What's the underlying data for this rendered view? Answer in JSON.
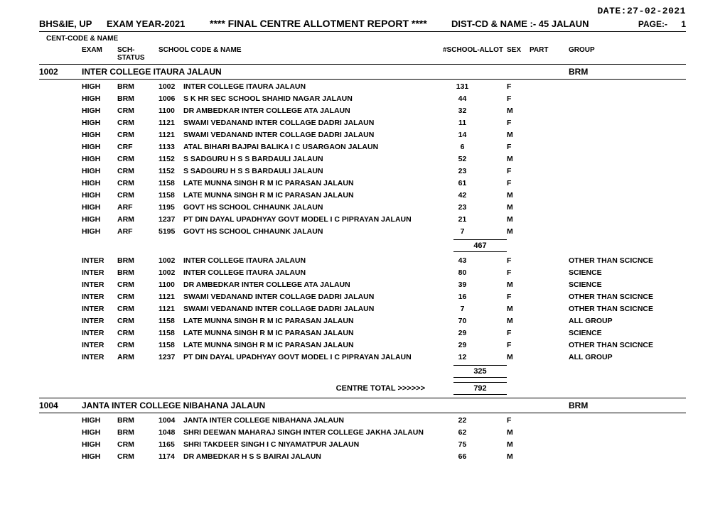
{
  "date_label": "DATE:27-02-2021",
  "org": "BHS&IE, UP",
  "exam_year": "EXAM YEAR-2021",
  "report_title": "****  FINAL CENTRE  ALLOTMENT REPORT  ****",
  "dist_label": "DIST-CD & NAME :-  45 JALAUN",
  "page_label": "PAGE:-",
  "page_no": "1",
  "cent_code_label": "CENT-CODE & NAME",
  "columns": {
    "exam": "EXAM",
    "status": "SCH-STATUS",
    "school": "SCHOOL CODE & NAME",
    "allot": "#SCHOOL-ALLOT",
    "sex": "SEX",
    "part": "PART",
    "group": "GROUP"
  },
  "centre_total_label": "CENTRE TOTAL >>>>>>",
  "centres": [
    {
      "code": "1002",
      "name": "INTER COLLEGE ITAURA JALAUN",
      "group": "BRM",
      "blocks": [
        {
          "rows": [
            {
              "exam": "HIGH",
              "status": "BRM",
              "code": "1002",
              "school": "INTER COLLEGE ITAURA JALAUN",
              "allot": "131",
              "sex": "F",
              "part": "",
              "group": ""
            },
            {
              "exam": "HIGH",
              "status": "BRM",
              "code": "1006",
              "school": "S K HR SEC SCHOOL SHAHID NAGAR JALAUN",
              "allot": "44",
              "sex": "F",
              "part": "",
              "group": ""
            },
            {
              "exam": "HIGH",
              "status": "CRM",
              "code": "1100",
              "school": "DR AMBEDKAR INTER COLLEGE ATA JALAUN",
              "allot": "32",
              "sex": "M",
              "part": "",
              "group": ""
            },
            {
              "exam": "HIGH",
              "status": "CRM",
              "code": "1121",
              "school": "SWAMI VEDANAND INTER COLLAGE DADRI JALAUN",
              "allot": "11",
              "sex": "F",
              "part": "",
              "group": ""
            },
            {
              "exam": "HIGH",
              "status": "CRM",
              "code": "1121",
              "school": "SWAMI VEDANAND INTER COLLAGE DADRI JALAUN",
              "allot": "14",
              "sex": "M",
              "part": "",
              "group": ""
            },
            {
              "exam": "HIGH",
              "status": "CRF",
              "code": "1133",
              "school": "ATAL BIHARI BAJPAI BALIKA I C USARGAON JALAUN",
              "allot": "6",
              "sex": "F",
              "part": "",
              "group": ""
            },
            {
              "exam": "HIGH",
              "status": "CRM",
              "code": "1152",
              "school": "S SADGURU H S S BARDAULI JALAUN",
              "allot": "52",
              "sex": "M",
              "part": "",
              "group": ""
            },
            {
              "exam": "HIGH",
              "status": "CRM",
              "code": "1152",
              "school": "S SADGURU H S S BARDAULI JALAUN",
              "allot": "23",
              "sex": "F",
              "part": "",
              "group": ""
            },
            {
              "exam": "HIGH",
              "status": "CRM",
              "code": "1158",
              "school": "LATE MUNNA SINGH R M IC PARASAN JALAUN",
              "allot": "61",
              "sex": "F",
              "part": "",
              "group": ""
            },
            {
              "exam": "HIGH",
              "status": "CRM",
              "code": "1158",
              "school": "LATE MUNNA SINGH R M IC PARASAN JALAUN",
              "allot": "42",
              "sex": "M",
              "part": "",
              "group": ""
            },
            {
              "exam": "HIGH",
              "status": "ARF",
              "code": "1195",
              "school": "GOVT HS SCHOOL CHHAUNK JALAUN",
              "allot": "23",
              "sex": "M",
              "part": "",
              "group": ""
            },
            {
              "exam": "HIGH",
              "status": "ARM",
              "code": "1237",
              "school": "PT DIN DAYAL UPADHYAY GOVT MODEL I C PIPRAYAN JALAUN",
              "allot": "21",
              "sex": "M",
              "part": "",
              "group": ""
            },
            {
              "exam": "HIGH",
              "status": "ARF",
              "code": "5195",
              "school": "GOVT HS SCHOOL CHHAUNK JALAUN",
              "allot": "7",
              "sex": "M",
              "part": "",
              "group": ""
            }
          ],
          "subtotal": "467"
        },
        {
          "rows": [
            {
              "exam": "INTER",
              "status": "BRM",
              "code": "1002",
              "school": "INTER COLLEGE ITAURA JALAUN",
              "allot": "43",
              "sex": "F",
              "part": "",
              "group": "OTHER THAN SCICNCE"
            },
            {
              "exam": "INTER",
              "status": "BRM",
              "code": "1002",
              "school": "INTER COLLEGE ITAURA JALAUN",
              "allot": "80",
              "sex": "F",
              "part": "",
              "group": "SCIENCE"
            },
            {
              "exam": "INTER",
              "status": "CRM",
              "code": "1100",
              "school": "DR AMBEDKAR INTER COLLEGE ATA JALAUN",
              "allot": "39",
              "sex": "M",
              "part": "",
              "group": "SCIENCE"
            },
            {
              "exam": "INTER",
              "status": "CRM",
              "code": "1121",
              "school": "SWAMI VEDANAND INTER COLLAGE DADRI JALAUN",
              "allot": "16",
              "sex": "F",
              "part": "",
              "group": "OTHER THAN SCICNCE"
            },
            {
              "exam": "INTER",
              "status": "CRM",
              "code": "1121",
              "school": "SWAMI VEDANAND INTER COLLAGE DADRI JALAUN",
              "allot": "7",
              "sex": "M",
              "part": "",
              "group": "OTHER THAN SCICNCE"
            },
            {
              "exam": "INTER",
              "status": "CRM",
              "code": "1158",
              "school": "LATE MUNNA SINGH R M IC PARASAN JALAUN",
              "allot": "70",
              "sex": "M",
              "part": "",
              "group": "ALL GROUP"
            },
            {
              "exam": "INTER",
              "status": "CRM",
              "code": "1158",
              "school": "LATE MUNNA SINGH R M IC PARASAN JALAUN",
              "allot": "29",
              "sex": "F",
              "part": "",
              "group": "SCIENCE"
            },
            {
              "exam": "INTER",
              "status": "CRM",
              "code": "1158",
              "school": "LATE MUNNA SINGH R M IC PARASAN JALAUN",
              "allot": "29",
              "sex": "F",
              "part": "",
              "group": "OTHER THAN SCICNCE"
            },
            {
              "exam": "INTER",
              "status": "ARM",
              "code": "1237",
              "school": "PT DIN DAYAL UPADHYAY GOVT MODEL I C PIPRAYAN JALAUN",
              "allot": "12",
              "sex": "M",
              "part": "",
              "group": "ALL GROUP"
            }
          ],
          "subtotal": "325"
        }
      ],
      "centre_total": "792"
    },
    {
      "code": "1004",
      "name": "JANTA INTER COLLEGE NIBAHANA JALAUN",
      "group": "BRM",
      "blocks": [
        {
          "rows": [
            {
              "exam": "HIGH",
              "status": "BRM",
              "code": "1004",
              "school": "JANTA INTER COLLEGE NIBAHANA JALAUN",
              "allot": "22",
              "sex": "F",
              "part": "",
              "group": ""
            },
            {
              "exam": "HIGH",
              "status": "BRM",
              "code": "1048",
              "school": "SHRI DEEWAN MAHARAJ SINGH INTER COLLEGE JAKHA JALAUN",
              "allot": "62",
              "sex": "M",
              "part": "",
              "group": ""
            },
            {
              "exam": "HIGH",
              "status": "CRM",
              "code": "1165",
              "school": "SHRI TAKDEER SINGH I C NIYAMATPUR JALAUN",
              "allot": "75",
              "sex": "M",
              "part": "",
              "group": ""
            },
            {
              "exam": "HIGH",
              "status": "CRM",
              "code": "1174",
              "school": "DR AMBEDKAR H S S BAIRAI JALAUN",
              "allot": "66",
              "sex": "M",
              "part": "",
              "group": ""
            }
          ]
        }
      ]
    }
  ]
}
